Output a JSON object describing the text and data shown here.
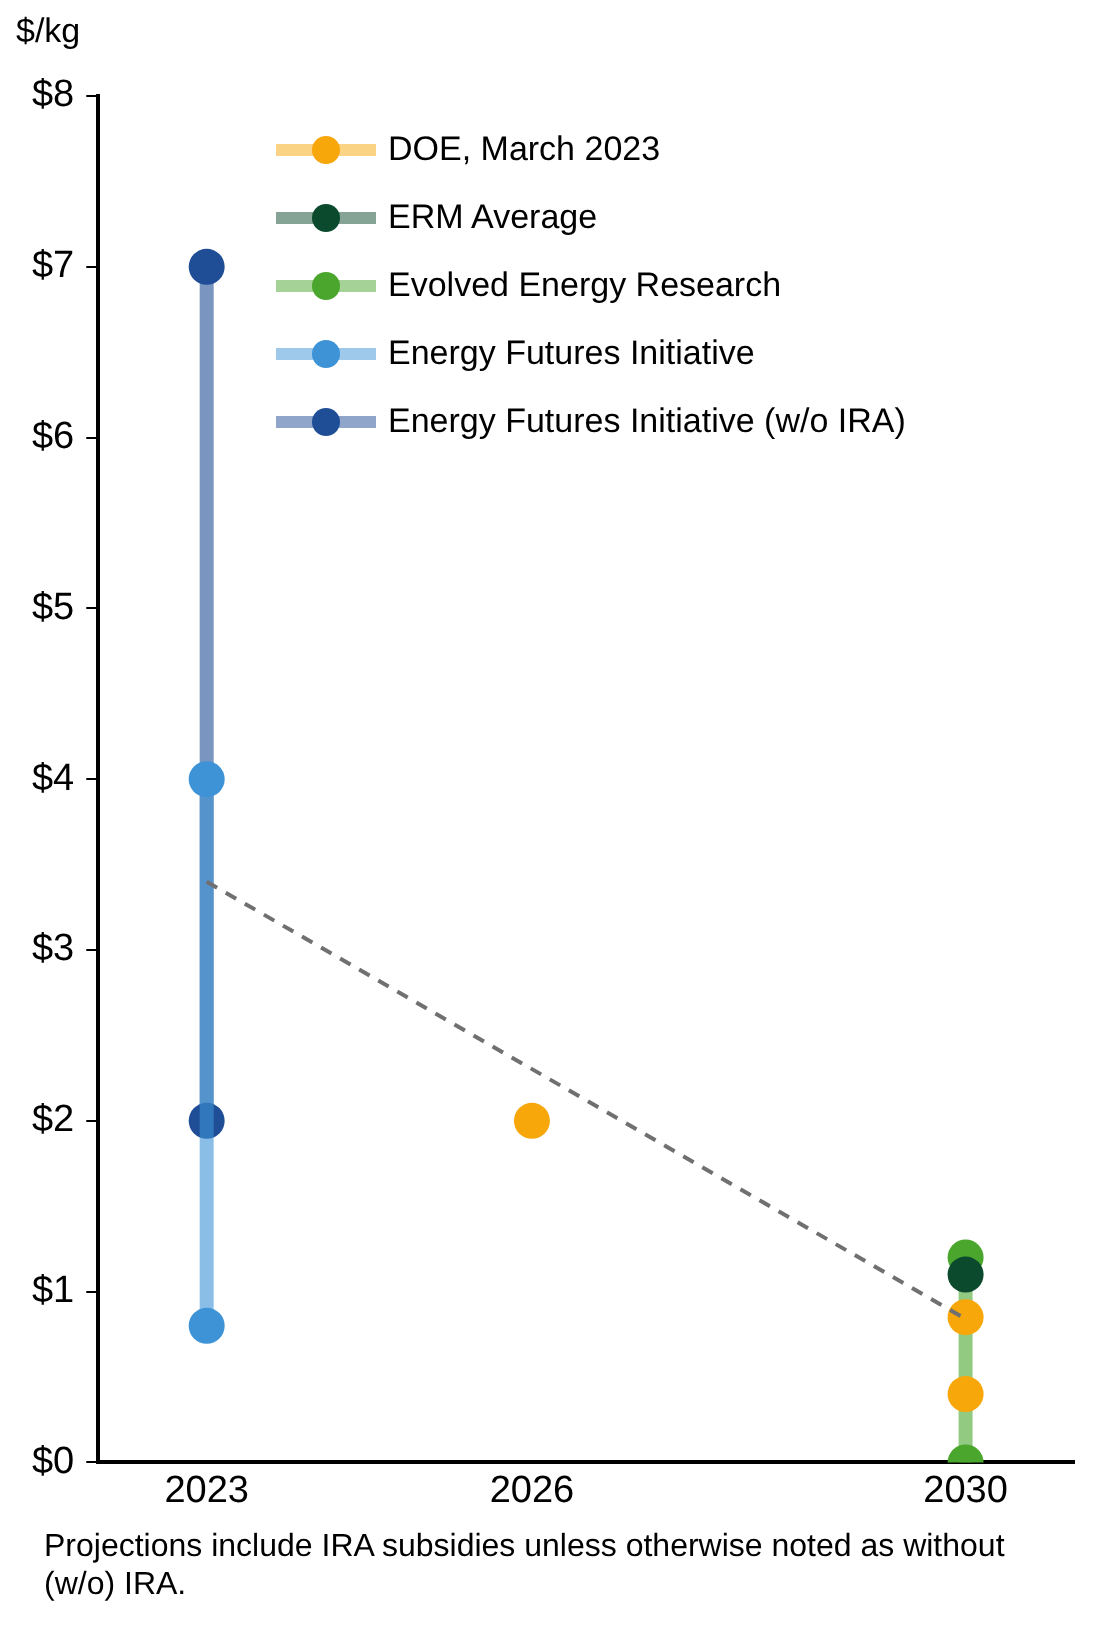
{
  "chart_data": {
    "type": "scatter",
    "ylabel": "$/kg",
    "xlim": [
      2022,
      2031
    ],
    "xticks": [
      2023,
      2026,
      2030
    ],
    "ylim": [
      0,
      8
    ],
    "yticks": [
      {
        "value": 0,
        "label": "$0"
      },
      {
        "value": 1,
        "label": "$1"
      },
      {
        "value": 2,
        "label": "$2"
      },
      {
        "value": 3,
        "label": "$3"
      },
      {
        "value": 4,
        "label": "$4"
      },
      {
        "value": 5,
        "label": "$5"
      },
      {
        "value": 6,
        "label": "$6"
      },
      {
        "value": 7,
        "label": "$7"
      },
      {
        "value": 8,
        "label": "$8"
      }
    ],
    "grid": false,
    "legend": "top left",
    "marker": "circle",
    "series": [
      {
        "name": "DOE, March 2023",
        "type": "scatter",
        "color": "#f7a70a",
        "x": [
          2026,
          2030,
          2030
        ],
        "values": [
          2,
          0.85,
          0.4
        ]
      },
      {
        "name": "ERM Average",
        "type": "scatter",
        "color": "#0b4a2c",
        "x": [
          2030
        ],
        "values": [
          1.1
        ]
      },
      {
        "name": "Evolved Energy Research",
        "type": "line",
        "color": "#4ba62e",
        "x": [
          2030,
          2030
        ],
        "values": [
          1.2,
          0
        ]
      },
      {
        "name": "Energy Futures Initiative",
        "type": "line",
        "color": "#3d93d6",
        "x": [
          2023,
          2023
        ],
        "values": [
          4,
          0.8
        ]
      },
      {
        "name": "Energy Futures Initiative (w/o IRA)",
        "type": "line",
        "color": "#1f4e96",
        "x": [
          2023,
          2023
        ],
        "values": [
          7,
          2
        ]
      },
      {
        "type": "line",
        "color": "#707070",
        "line_style": "dashed",
        "marker": "none",
        "x": [
          2023,
          2030
        ],
        "values": [
          3.4,
          0.84
        ]
      }
    ],
    "annotations": [
      "Projections include IRA subsidies unless otherwise noted as without (w/o) IRA."
    ]
  }
}
